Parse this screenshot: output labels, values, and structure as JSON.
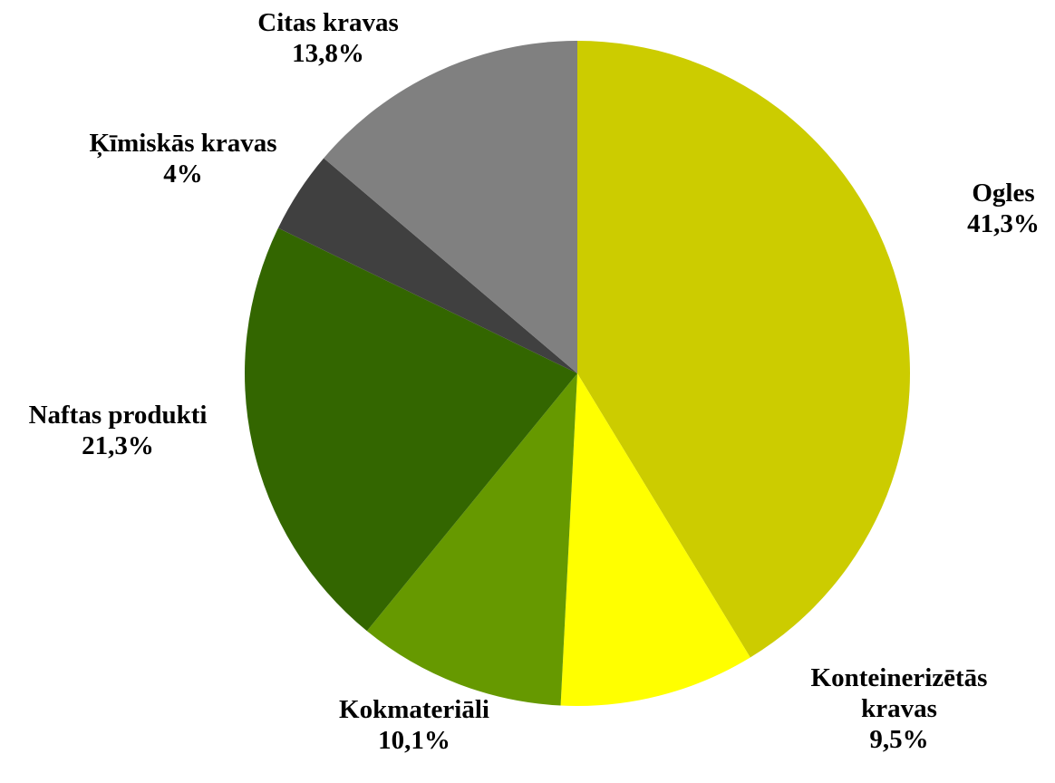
{
  "chart_data": {
    "type": "pie",
    "categories": [
      "Ogles",
      "Konteinerizētās kravas",
      "Kokmateriāli",
      "Naftas produkti",
      "Ķīmiskās kravas",
      "Citas kravas"
    ],
    "values": [
      41.3,
      9.5,
      10.1,
      21.3,
      4,
      13.8
    ],
    "value_labels": [
      "41,3%",
      "9,5%",
      "10,1%",
      "21,3%",
      "4%",
      "13,8%"
    ],
    "colors": [
      "#cccc00",
      "#ffff00",
      "#669900",
      "#336600",
      "#404040",
      "#808080"
    ]
  }
}
